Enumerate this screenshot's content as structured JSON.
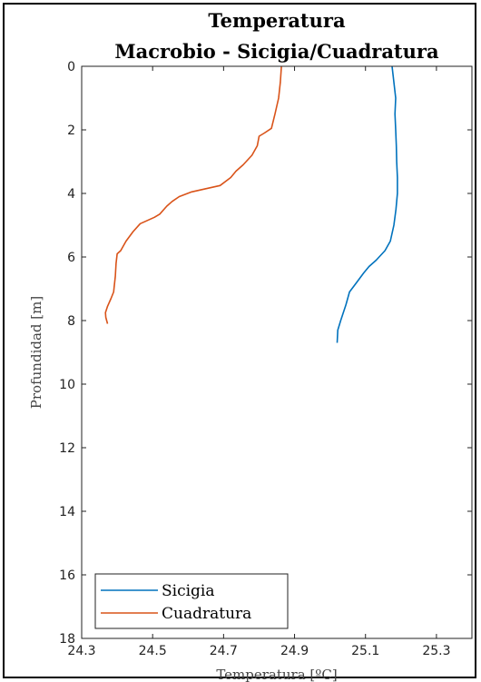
{
  "chart_data": {
    "type": "line",
    "title": "Temperatura",
    "subtitle": "Macrobio - Sicigia/Cuadratura",
    "xlabel": "Temperatura [ºC]",
    "ylabel": "Profundidad [m]",
    "xlim": [
      24.3,
      25.4
    ],
    "ylim": [
      0,
      18
    ],
    "y_reversed": true,
    "x_ticks": [
      "24.3",
      "24.5",
      "24.7",
      "24.9",
      "25.1",
      "25.3"
    ],
    "y_ticks": [
      "0",
      "2",
      "4",
      "6",
      "8",
      "10",
      "12",
      "14",
      "16",
      "18"
    ],
    "legend_position": "bottom-left",
    "grid": false,
    "series": [
      {
        "name": "Sicigia",
        "color": "#0072BD",
        "points": [
          [
            25.175,
            0.0
          ],
          [
            25.18,
            0.5
          ],
          [
            25.185,
            1.0
          ],
          [
            25.183,
            1.5
          ],
          [
            25.185,
            2.0
          ],
          [
            25.187,
            2.5
          ],
          [
            25.188,
            3.0
          ],
          [
            25.19,
            3.5
          ],
          [
            25.19,
            4.0
          ],
          [
            25.186,
            4.5
          ],
          [
            25.18,
            5.0
          ],
          [
            25.17,
            5.5
          ],
          [
            25.155,
            5.8
          ],
          [
            25.13,
            6.1
          ],
          [
            25.11,
            6.3
          ],
          [
            25.095,
            6.5
          ],
          [
            25.075,
            6.8
          ],
          [
            25.055,
            7.1
          ],
          [
            25.045,
            7.5
          ],
          [
            25.03,
            8.0
          ],
          [
            25.022,
            8.3
          ],
          [
            25.02,
            8.7
          ]
        ]
      },
      {
        "name": "Cuadratura",
        "color": "#D95319",
        "points": [
          [
            24.863,
            0.0
          ],
          [
            24.86,
            0.5
          ],
          [
            24.855,
            1.0
          ],
          [
            24.845,
            1.5
          ],
          [
            24.835,
            1.95
          ],
          [
            24.815,
            2.1
          ],
          [
            24.8,
            2.2
          ],
          [
            24.795,
            2.5
          ],
          [
            24.78,
            2.8
          ],
          [
            24.755,
            3.1
          ],
          [
            24.735,
            3.3
          ],
          [
            24.72,
            3.5
          ],
          [
            24.69,
            3.75
          ],
          [
            24.65,
            3.85
          ],
          [
            24.61,
            3.95
          ],
          [
            24.575,
            4.1
          ],
          [
            24.555,
            4.25
          ],
          [
            24.54,
            4.4
          ],
          [
            24.52,
            4.65
          ],
          [
            24.505,
            4.75
          ],
          [
            24.485,
            4.85
          ],
          [
            24.465,
            4.95
          ],
          [
            24.445,
            5.2
          ],
          [
            24.425,
            5.5
          ],
          [
            24.41,
            5.8
          ],
          [
            24.4,
            5.9
          ],
          [
            24.397,
            6.2
          ],
          [
            24.395,
            6.6
          ],
          [
            24.39,
            7.1
          ],
          [
            24.383,
            7.3
          ],
          [
            24.373,
            7.55
          ],
          [
            24.367,
            7.75
          ],
          [
            24.368,
            7.9
          ],
          [
            24.373,
            8.1
          ]
        ]
      }
    ]
  }
}
